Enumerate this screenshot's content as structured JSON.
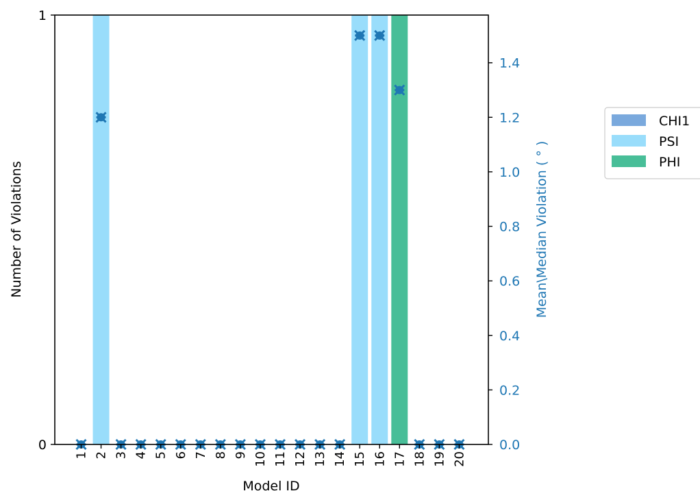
{
  "chart_data": {
    "type": "bar",
    "categories": [
      "1",
      "2",
      "3",
      "4",
      "5",
      "6",
      "7",
      "8",
      "9",
      "10",
      "11",
      "12",
      "13",
      "14",
      "15",
      "16",
      "17",
      "18",
      "19",
      "20"
    ],
    "xlabel": "Model ID",
    "ylabel_left": "Number of Violations",
    "ylabel_right": "Mean\\Median Violation ( ° )",
    "ylim_left": [
      0,
      1
    ],
    "yticks_left": [
      "0",
      "1"
    ],
    "ylim_right": [
      0,
      1.575
    ],
    "yticks_right": [
      "0.0",
      "0.2",
      "0.4",
      "0.6",
      "0.8",
      "1.0",
      "1.2",
      "1.4"
    ],
    "grid": false,
    "legend_position": "right",
    "series": [
      {
        "name": "CHI1",
        "color": "#7aa9dd",
        "values": [
          0,
          0,
          0,
          0,
          0,
          0,
          0,
          0,
          0,
          0,
          0,
          0,
          0,
          0,
          0,
          0,
          0,
          0,
          0,
          0
        ]
      },
      {
        "name": "PSI",
        "color": "#99ddfb",
        "values": [
          0,
          1,
          0,
          0,
          0,
          0,
          0,
          0,
          0,
          0,
          0,
          0,
          0,
          0,
          1,
          1,
          0,
          0,
          0,
          0
        ]
      },
      {
        "name": "PHI",
        "color": "#48be98",
        "values": [
          0,
          0,
          0,
          0,
          0,
          0,
          0,
          0,
          0,
          0,
          0,
          0,
          0,
          0,
          0,
          0,
          1,
          0,
          0,
          0
        ]
      }
    ],
    "violation_series": {
      "axis": "right",
      "color": "#1f77b4",
      "values": [
        0,
        1.2,
        0,
        0,
        0,
        0,
        0,
        0,
        0,
        0,
        0,
        0,
        0,
        0,
        1.5,
        1.5,
        1.3,
        0,
        0,
        0
      ]
    }
  }
}
